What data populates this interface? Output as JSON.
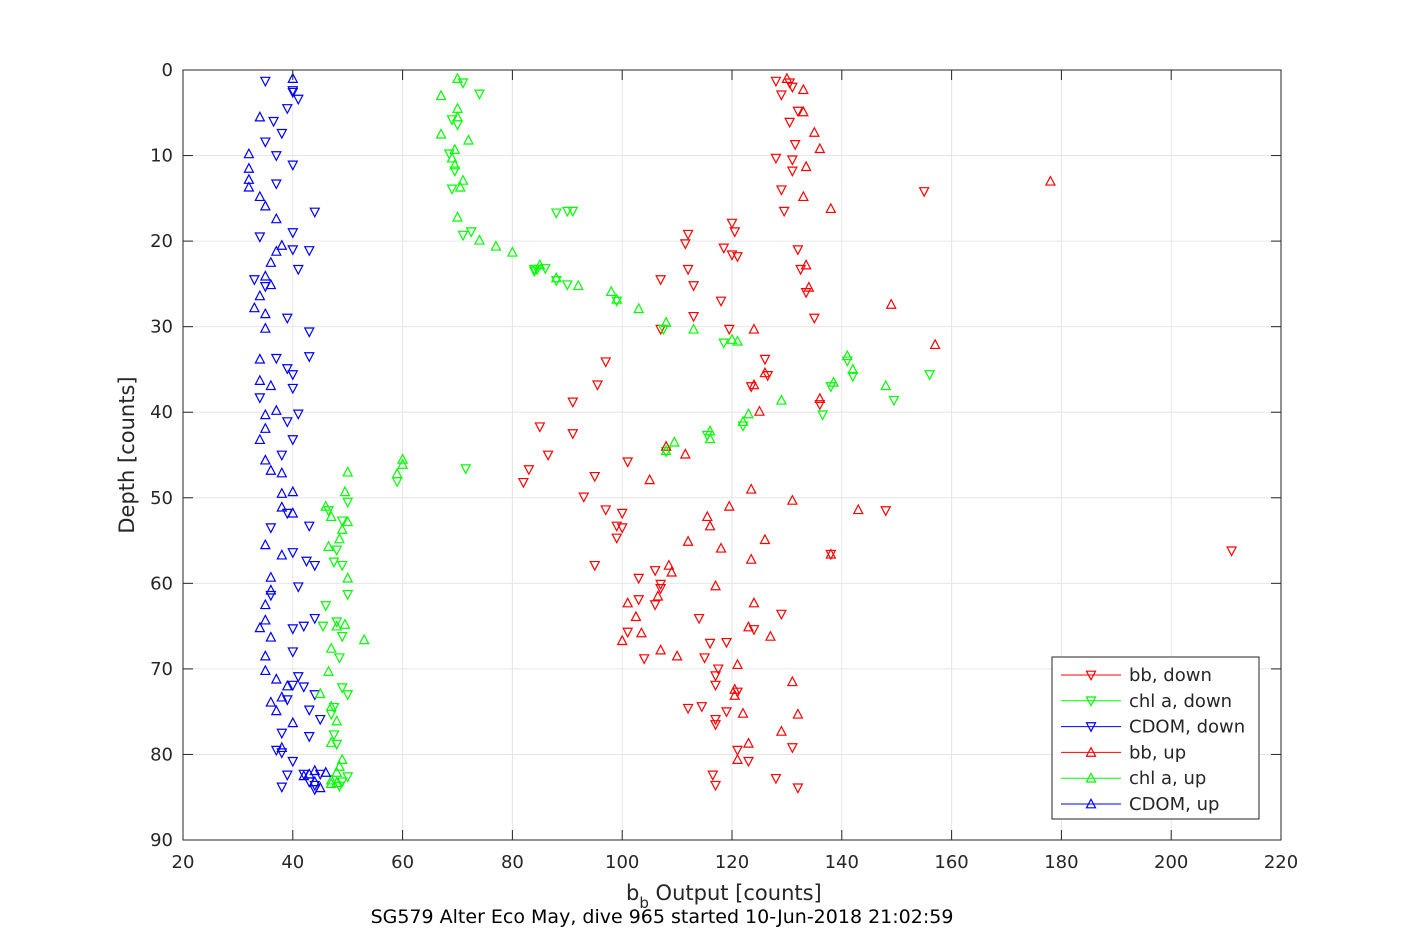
{
  "chart_data": {
    "type": "scatter",
    "title": "",
    "caption": "SG579 Alter Eco May, dive 965 started 10-Jun-2018 21:02:59",
    "xlabel": {
      "base": "b",
      "subscript": "b",
      "rest": " Output [counts]"
    },
    "ylabel": "Depth [counts]",
    "xlim": [
      20,
      220
    ],
    "ylim": [
      0,
      90
    ],
    "y_reversed": true,
    "grid": true,
    "legend_position": "bottom-right",
    "xticks": [
      "20",
      "40",
      "60",
      "80",
      "100",
      "120",
      "140",
      "160",
      "180",
      "200",
      "220"
    ],
    "yticks": [
      "0",
      "10",
      "20",
      "30",
      "40",
      "50",
      "60",
      "70",
      "80",
      "90"
    ],
    "series": [
      {
        "name": "bb, down",
        "color": "#ff0000",
        "marker": "triangle-down",
        "x": [
          128,
          130.5,
          131,
          129,
          132,
          130.5,
          131.5,
          131,
          131,
          128,
          155,
          129.5,
          129,
          120,
          120.5,
          112,
          111.5,
          118.5,
          121,
          132,
          120,
          132.5,
          112,
          107,
          118,
          113,
          113,
          126,
          119.5,
          107,
          97,
          126.5,
          133.5,
          123.5,
          135,
          91,
          95.5,
          136,
          85,
          91,
          86.5,
          83,
          101,
          82,
          95,
          93,
          97,
          148,
          100,
          99,
          100,
          99,
          138,
          211,
          95,
          106,
          103,
          107,
          107,
          103,
          106,
          129,
          114,
          101,
          116,
          124,
          117.5,
          119,
          115,
          117,
          104,
          117,
          114.5,
          121,
          112,
          119,
          117,
          117,
          121,
          131,
          123,
          116.5,
          128,
          117,
          132
        ],
        "y": [
          1.3,
          1.5,
          2,
          2.9,
          4.8,
          6.1,
          8.7,
          10.5,
          11.8,
          10.3,
          14.2,
          16.5,
          14,
          17.9,
          18.9,
          19.2,
          20.3,
          20.8,
          21.8,
          21,
          21.6,
          23.3,
          23.3,
          24.5,
          27,
          25.2,
          28.8,
          33.8,
          30.3,
          30.3,
          34.1,
          35.7,
          26,
          37,
          29,
          38.8,
          36.8,
          39.1,
          41.7,
          42.5,
          45,
          46.7,
          45.8,
          48.2,
          47.5,
          49.9,
          51.4,
          51.5,
          51.8,
          53.3,
          53.5,
          54.7,
          56.6,
          56.2,
          57.9,
          58.5,
          59.4,
          60.1,
          60.6,
          61.9,
          62.5,
          63.6,
          64.1,
          65.7,
          67,
          65.4,
          70,
          66.9,
          68.7,
          70.8,
          68.8,
          71.9,
          74.4,
          72.7,
          74.6,
          75,
          75.9,
          76.5,
          79.5,
          79.2,
          80.8,
          82.4,
          82.8,
          83.6,
          83.9
        ]
      },
      {
        "name": "chl a, down",
        "color": "#00ff00",
        "marker": "triangle-down",
        "x": [
          71,
          74,
          69,
          70,
          68.5,
          69.5,
          69,
          72.5,
          71,
          91,
          90,
          88,
          86,
          84.5,
          84,
          88,
          84,
          90,
          99,
          107.5,
          118.5,
          141,
          138,
          156,
          142,
          149.5,
          136.5,
          122,
          115.5,
          108,
          71.5,
          59,
          50,
          46.5,
          49,
          48,
          49,
          47.5,
          50,
          46,
          48,
          45.5,
          49,
          48.5,
          49,
          47.5,
          50,
          47,
          47.5,
          48,
          50,
          49,
          48.5
        ],
        "y": [
          1.5,
          2.8,
          5.8,
          6.4,
          9.8,
          11.8,
          13.9,
          18.9,
          19.3,
          16.5,
          16.5,
          16.7,
          23.2,
          23.3,
          23.3,
          24.6,
          23.5,
          25.1,
          27,
          30.3,
          31.9,
          34,
          37,
          35.6,
          35.8,
          38.6,
          40.3,
          41.6,
          42.7,
          44.6,
          46.6,
          48.1,
          50.5,
          51.5,
          52.7,
          56.1,
          57.9,
          57.5,
          61.3,
          62.6,
          64.5,
          65,
          66.2,
          68.7,
          72.2,
          74.5,
          73,
          75.3,
          77.7,
          78.8,
          82.6,
          83.2,
          83.7
        ]
      },
      {
        "name": "CDOM, down",
        "color": "#0000ff",
        "marker": "triangle-down",
        "x": [
          35,
          40,
          41,
          40,
          39,
          36.5,
          38,
          35,
          37,
          40,
          37,
          44,
          40,
          40,
          34,
          43,
          41,
          33,
          35,
          39,
          43,
          37,
          43,
          40,
          40,
          39,
          34,
          39,
          41,
          40,
          38,
          39,
          36,
          43,
          40,
          42.5,
          44,
          41,
          36,
          44,
          42,
          40,
          40,
          41,
          39,
          45,
          38,
          43,
          37,
          40,
          39,
          43,
          38,
          42,
          44,
          43,
          40,
          38,
          45,
          44,
          42,
          44
        ],
        "y": [
          1.3,
          2.6,
          3.4,
          2.4,
          4.5,
          6,
          7.4,
          8.4,
          10,
          11.1,
          13.3,
          16.6,
          19,
          21,
          19.5,
          21.1,
          23.3,
          24.5,
          25.3,
          29,
          30.6,
          33.7,
          33.5,
          35.6,
          37.2,
          34.9,
          38.3,
          41.1,
          40.2,
          43.2,
          45,
          51.8,
          53.5,
          53.3,
          56.4,
          57.4,
          57.9,
          60.4,
          61.4,
          64.1,
          65,
          65.3,
          68,
          70.9,
          73.6,
          75.9,
          77.5,
          77.9,
          79.5,
          80.8,
          82.4,
          83.2,
          83.8,
          72.1,
          73,
          74.8,
          71.9,
          79.8,
          82.3,
          84.1,
          82.3,
          83.6
        ]
      },
      {
        "name": "bb, up",
        "color": "#ff0000",
        "marker": "triangle-up",
        "x": [
          130,
          133,
          133,
          135,
          136,
          133.5,
          178,
          138,
          133,
          133.5,
          149,
          134,
          124,
          157,
          126,
          124,
          136,
          125,
          143,
          126,
          138,
          131,
          123.5,
          121,
          123,
          124,
          127,
          120.5,
          131,
          122,
          108,
          111.5,
          105,
          123.5,
          119.5,
          115.5,
          116,
          112,
          118,
          108.5,
          109,
          117,
          106.5,
          101,
          102.5,
          103.5,
          100,
          107,
          110,
          120.5,
          132,
          129,
          123,
          121
        ],
        "y": [
          1,
          2.3,
          4.9,
          7.3,
          9.2,
          11.3,
          13,
          16.2,
          14.8,
          22.8,
          27.4,
          25.4,
          30.3,
          32.1,
          35.4,
          36.8,
          38.4,
          39.9,
          51.4,
          54.9,
          56.6,
          50.3,
          57.2,
          69.5,
          65.1,
          62.3,
          66.2,
          72.4,
          71.5,
          75.2,
          44,
          44.9,
          47.9,
          49,
          51,
          52.2,
          53.3,
          55.1,
          55.9,
          57.9,
          58.7,
          60.3,
          61.5,
          62.3,
          63.9,
          65.8,
          66.7,
          67.8,
          68.5,
          73.1,
          75.3,
          77.3,
          78.7,
          80.6
        ]
      },
      {
        "name": "chl a, up",
        "color": "#00ff00",
        "marker": "triangle-up",
        "x": [
          70,
          67,
          70,
          70,
          67,
          72,
          69.5,
          69,
          69.5,
          71,
          70.5,
          70,
          74,
          77,
          80,
          85,
          88,
          92,
          98,
          99,
          103,
          108,
          113,
          121,
          120,
          141,
          142,
          148,
          138.5,
          129,
          123,
          122,
          116,
          116,
          109.5,
          108,
          60,
          60,
          59,
          50,
          49.5,
          46,
          47,
          50,
          49,
          46.5,
          48.5,
          50,
          53,
          49.5,
          48,
          47,
          46.5,
          45,
          47,
          48,
          47,
          49,
          48.5,
          48,
          47,
          47,
          48
        ],
        "y": [
          1,
          3,
          4.5,
          5.5,
          7.5,
          8.2,
          9.3,
          10.3,
          11.1,
          12.9,
          13.7,
          17.2,
          19.9,
          20.6,
          21.3,
          22.8,
          24.3,
          25.2,
          25.9,
          26.8,
          27.9,
          29.5,
          30.3,
          31.7,
          31.5,
          33.4,
          35,
          36.9,
          36.5,
          38.6,
          40.2,
          41.1,
          42.2,
          43.1,
          43.5,
          44.5,
          45.5,
          46.1,
          47.2,
          47,
          49.3,
          51,
          52.2,
          52.8,
          53.7,
          55.7,
          54.8,
          59.4,
          66.6,
          64.8,
          65,
          67.6,
          70.3,
          72.9,
          74.4,
          76.1,
          78.6,
          80.6,
          81.4,
          82.1,
          83,
          83.4,
          83.3
        ]
      },
      {
        "name": "CDOM, up",
        "color": "#0000ff",
        "marker": "triangle-up",
        "x": [
          40,
          34,
          32,
          32,
          32,
          32,
          34,
          35,
          37,
          37,
          38,
          36,
          35,
          36,
          34,
          33,
          35,
          35,
          34,
          34,
          36,
          37,
          35,
          35,
          34,
          35,
          36,
          38,
          40,
          38,
          35,
          38,
          36,
          36,
          35,
          35,
          34,
          36,
          35,
          35,
          37,
          36,
          39,
          38,
          37,
          40,
          38,
          43,
          44,
          45,
          42,
          44,
          46,
          38,
          40
        ],
        "y": [
          1,
          5.5,
          9.8,
          11.5,
          12.8,
          13.7,
          14.8,
          15.9,
          17.4,
          21.2,
          20.5,
          22.5,
          24.1,
          25.1,
          26.4,
          27.8,
          28.5,
          30.2,
          33.8,
          36.3,
          36.9,
          39.8,
          40.3,
          41.9,
          43.2,
          45.6,
          46.8,
          47.1,
          49.3,
          51.1,
          55.5,
          56.7,
          59.3,
          60.8,
          62.5,
          64.3,
          65.2,
          66.3,
          68.5,
          70.2,
          71.2,
          73.9,
          72,
          73.3,
          74.9,
          76.3,
          79.2,
          82.3,
          83.2,
          83.9,
          82.5,
          81.9,
          82.1,
          49.5,
          51.8
        ]
      }
    ]
  }
}
